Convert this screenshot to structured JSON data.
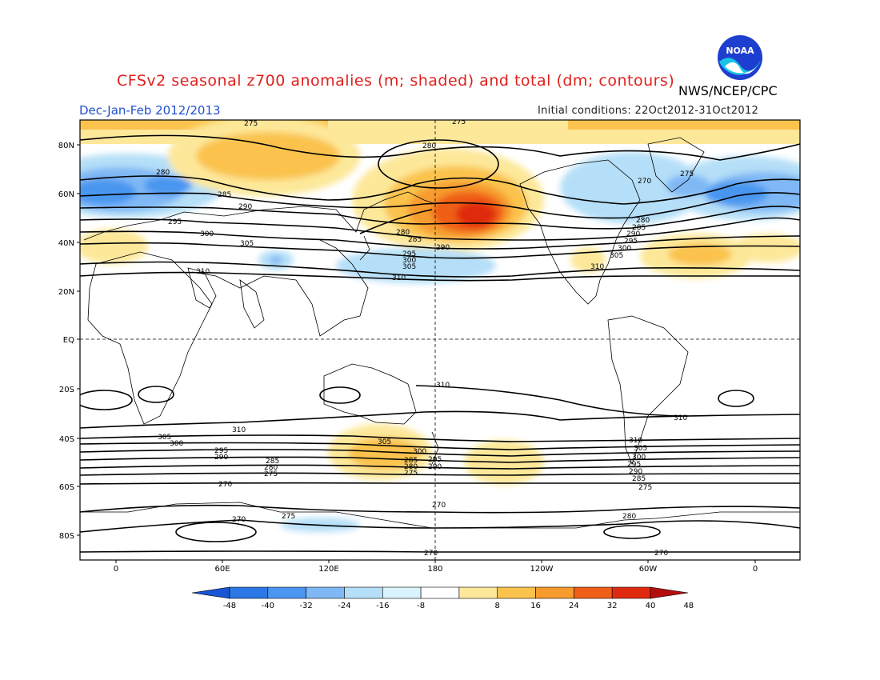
{
  "title": "CFSv2 seasonal z700 anomalies (m; shaded) and total (dm; contours)",
  "agency": "NWS/NCEP/CPC",
  "period": "Dec-Jan-Feb 2012/2013",
  "initial_conditions": "Initial conditions: 22Oct2012-31Oct2012",
  "logo_text": "NOAA",
  "lat_labels": [
    "80N",
    "60N",
    "40N",
    "20N",
    "EQ",
    "20S",
    "40S",
    "60S",
    "80S"
  ],
  "lon_labels": [
    "0",
    "60E",
    "120E",
    "180",
    "120W",
    "60W",
    "0"
  ],
  "colorbar": {
    "labels": [
      "-48",
      "-40",
      "-32",
      "-24",
      "-16",
      "-8",
      "8",
      "16",
      "24",
      "32",
      "40",
      "48"
    ],
    "colors": [
      "#1a55d6",
      "#2b78e6",
      "#4a96f0",
      "#7fb8f5",
      "#b5dff8",
      "#d8f3fb",
      "#ffffff",
      "#fde89a",
      "#fbc34e",
      "#f69b2d",
      "#ef5f17",
      "#e02a10",
      "#b40f0f"
    ]
  },
  "contour_labels": {
    "nh": [
      "275",
      "280",
      "285",
      "290",
      "295",
      "300",
      "305",
      "310",
      "280",
      "285",
      "290",
      "295",
      "300",
      "305",
      "310",
      "275",
      "280",
      "270",
      "275",
      "280",
      "285",
      "290",
      "295",
      "300",
      "305",
      "310"
    ],
    "sh": [
      "310",
      "310",
      "310",
      "305",
      "300",
      "295",
      "290",
      "285",
      "280",
      "275",
      "270",
      "270",
      "275",
      "270",
      "275",
      "270",
      "305",
      "300",
      "295",
      "290",
      "285",
      "280",
      "275",
      "270",
      "310",
      "305",
      "300",
      "295",
      "290",
      "285",
      "280"
    ]
  }
}
